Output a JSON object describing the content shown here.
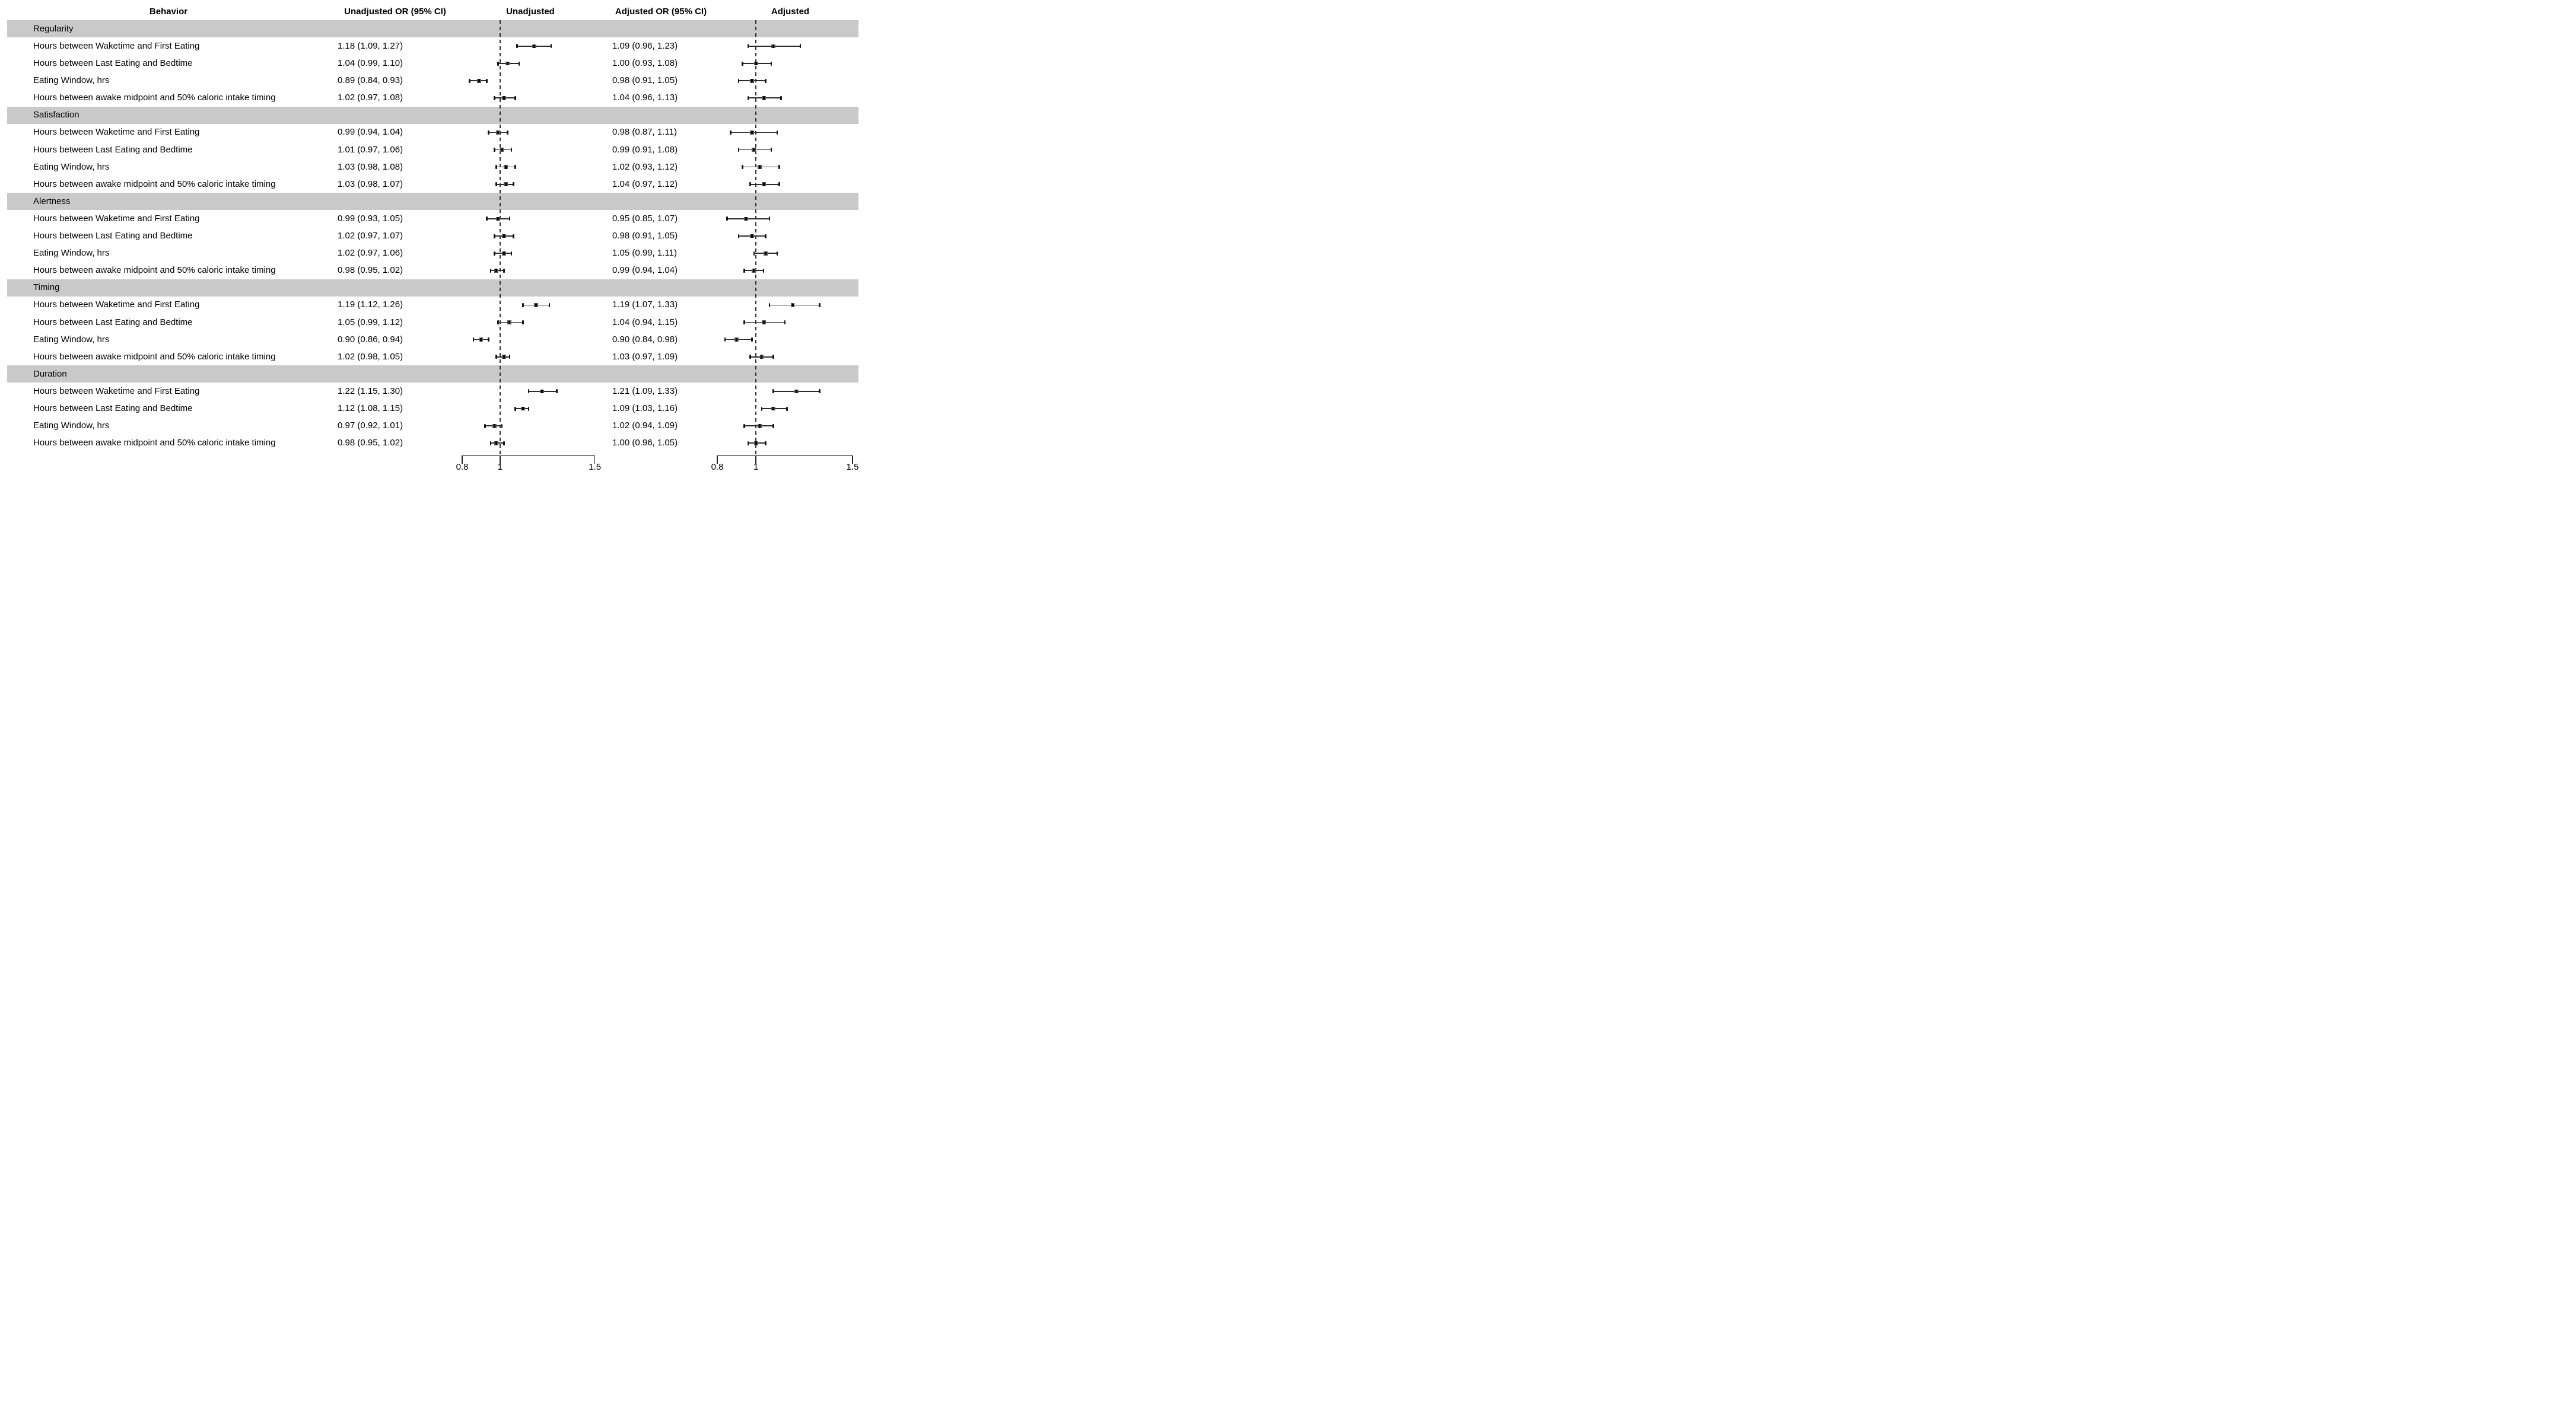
{
  "columns": {
    "behavior": "Behavior",
    "unadjusted_or": "Unadjusted OR (95% CI)",
    "unadjusted": "Unadjusted",
    "adjusted_or": "Adjusted OR (95% CI)",
    "adjusted": "Adjusted"
  },
  "colors": {
    "band": "#c9c9c9",
    "text": "#000000",
    "error_bar": "#2b2b2b",
    "cap": "#151515",
    "square_fill": "#5a5a5e",
    "point": "#000000",
    "reference_line": "#2e2e2e",
    "axis": "#222222"
  },
  "chart_data": {
    "type": "forest",
    "scale": "linear",
    "panels": [
      "Unadjusted",
      "Adjusted"
    ],
    "axis": {
      "range": [
        0.8,
        1.5
      ],
      "reference": 1,
      "ticks": [
        0.8,
        1,
        1.5
      ],
      "tick_labels": [
        "0.8",
        "1",
        "1.5"
      ]
    },
    "sections": [
      {
        "name": "Regularity",
        "rows": [
          {
            "label": "Hours between Waketime and First Eating",
            "unadjusted": {
              "text": "1.18 (1.09, 1.27)",
              "or": 1.18,
              "lo": 1.09,
              "hi": 1.27
            },
            "adjusted": {
              "text": "1.09 (0.96, 1.23)",
              "or": 1.09,
              "lo": 0.96,
              "hi": 1.23
            }
          },
          {
            "label": "Hours between Last Eating and Bedtime",
            "unadjusted": {
              "text": "1.04 (0.99, 1.10)",
              "or": 1.04,
              "lo": 0.99,
              "hi": 1.1
            },
            "adjusted": {
              "text": "1.00 (0.93, 1.08)",
              "or": 1.0,
              "lo": 0.93,
              "hi": 1.08
            }
          },
          {
            "label": "Eating Window, hrs",
            "unadjusted": {
              "text": "0.89 (0.84, 0.93)",
              "or": 0.89,
              "lo": 0.84,
              "hi": 0.93
            },
            "adjusted": {
              "text": "0.98 (0.91, 1.05)",
              "or": 0.98,
              "lo": 0.91,
              "hi": 1.05
            }
          },
          {
            "label": "Hours between awake midpoint and 50% caloric intake timing",
            "unadjusted": {
              "text": "1.02 (0.97, 1.08)",
              "or": 1.02,
              "lo": 0.97,
              "hi": 1.08
            },
            "adjusted": {
              "text": "1.04 (0.96, 1.13)",
              "or": 1.04,
              "lo": 0.96,
              "hi": 1.13
            }
          }
        ]
      },
      {
        "name": "Satisfaction",
        "rows": [
          {
            "label": "Hours between Waketime and First Eating",
            "unadjusted": {
              "text": "0.99 (0.94, 1.04)",
              "or": 0.99,
              "lo": 0.94,
              "hi": 1.04
            },
            "adjusted": {
              "text": "0.98 (0.87, 1.11)",
              "or": 0.98,
              "lo": 0.87,
              "hi": 1.11
            }
          },
          {
            "label": "Hours between Last Eating and Bedtime",
            "unadjusted": {
              "text": "1.01 (0.97, 1.06)",
              "or": 1.01,
              "lo": 0.97,
              "hi": 1.06
            },
            "adjusted": {
              "text": "0.99 (0.91, 1.08)",
              "or": 0.99,
              "lo": 0.91,
              "hi": 1.08
            }
          },
          {
            "label": "Eating Window, hrs",
            "unadjusted": {
              "text": "1.03 (0.98, 1.08)",
              "or": 1.03,
              "lo": 0.98,
              "hi": 1.08
            },
            "adjusted": {
              "text": "1.02 (0.93, 1.12)",
              "or": 1.02,
              "lo": 0.93,
              "hi": 1.12
            }
          },
          {
            "label": "Hours between awake midpoint and 50% caloric intake timing",
            "unadjusted": {
              "text": "1.03 (0.98, 1.07)",
              "or": 1.03,
              "lo": 0.98,
              "hi": 1.07
            },
            "adjusted": {
              "text": "1.04 (0.97, 1.12)",
              "or": 1.04,
              "lo": 0.97,
              "hi": 1.12
            }
          }
        ]
      },
      {
        "name": "Alertness",
        "rows": [
          {
            "label": "Hours between Waketime and First Eating",
            "unadjusted": {
              "text": "0.99 (0.93, 1.05)",
              "or": 0.99,
              "lo": 0.93,
              "hi": 1.05
            },
            "adjusted": {
              "text": "0.95 (0.85, 1.07)",
              "or": 0.95,
              "lo": 0.85,
              "hi": 1.07
            }
          },
          {
            "label": "Hours between Last Eating and Bedtime",
            "unadjusted": {
              "text": "1.02 (0.97, 1.07)",
              "or": 1.02,
              "lo": 0.97,
              "hi": 1.07
            },
            "adjusted": {
              "text": "0.98 (0.91, 1.05)",
              "or": 0.98,
              "lo": 0.91,
              "hi": 1.05
            }
          },
          {
            "label": "Eating Window, hrs",
            "unadjusted": {
              "text": "1.02 (0.97, 1.06)",
              "or": 1.02,
              "lo": 0.97,
              "hi": 1.06
            },
            "adjusted": {
              "text": "1.05 (0.99, 1.11)",
              "or": 1.05,
              "lo": 0.99,
              "hi": 1.11
            }
          },
          {
            "label": "Hours between awake midpoint and 50% caloric intake timing",
            "unadjusted": {
              "text": "0.98 (0.95, 1.02)",
              "or": 0.98,
              "lo": 0.95,
              "hi": 1.02
            },
            "adjusted": {
              "text": "0.99 (0.94, 1.04)",
              "or": 0.99,
              "lo": 0.94,
              "hi": 1.04
            }
          }
        ]
      },
      {
        "name": "Timing",
        "rows": [
          {
            "label": "Hours between Waketime and First Eating",
            "unadjusted": {
              "text": "1.19 (1.12, 1.26)",
              "or": 1.19,
              "lo": 1.12,
              "hi": 1.26
            },
            "adjusted": {
              "text": "1.19 (1.07, 1.33)",
              "or": 1.19,
              "lo": 1.07,
              "hi": 1.33
            }
          },
          {
            "label": "Hours between Last Eating and Bedtime",
            "unadjusted": {
              "text": "1.05 (0.99, 1.12)",
              "or": 1.05,
              "lo": 0.99,
              "hi": 1.12
            },
            "adjusted": {
              "text": "1.04 (0.94, 1.15)",
              "or": 1.04,
              "lo": 0.94,
              "hi": 1.15
            }
          },
          {
            "label": "Eating Window, hrs",
            "unadjusted": {
              "text": "0.90 (0.86, 0.94)",
              "or": 0.9,
              "lo": 0.86,
              "hi": 0.94
            },
            "adjusted": {
              "text": "0.90 (0.84, 0.98)",
              "or": 0.9,
              "lo": 0.84,
              "hi": 0.98
            }
          },
          {
            "label": "Hours between awake midpoint and 50% caloric intake timing",
            "unadjusted": {
              "text": "1.02 (0.98, 1.05)",
              "or": 1.02,
              "lo": 0.98,
              "hi": 1.05
            },
            "adjusted": {
              "text": "1.03 (0.97, 1.09)",
              "or": 1.03,
              "lo": 0.97,
              "hi": 1.09
            }
          }
        ]
      },
      {
        "name": "Duration",
        "rows": [
          {
            "label": "Hours between Waketime and First Eating",
            "unadjusted": {
              "text": "1.22 (1.15, 1.30)",
              "or": 1.22,
              "lo": 1.15,
              "hi": 1.3
            },
            "adjusted": {
              "text": "1.21 (1.09, 1.33)",
              "or": 1.21,
              "lo": 1.09,
              "hi": 1.33
            }
          },
          {
            "label": "Hours between Last Eating and Bedtime",
            "unadjusted": {
              "text": "1.12 (1.08, 1.15)",
              "or": 1.12,
              "lo": 1.08,
              "hi": 1.15
            },
            "adjusted": {
              "text": "1.09 (1.03, 1.16)",
              "or": 1.09,
              "lo": 1.03,
              "hi": 1.16
            }
          },
          {
            "label": "Eating Window, hrs",
            "unadjusted": {
              "text": "0.97 (0.92, 1.01)",
              "or": 0.97,
              "lo": 0.92,
              "hi": 1.01
            },
            "adjusted": {
              "text": "1.02 (0.94, 1.09)",
              "or": 1.02,
              "lo": 0.94,
              "hi": 1.09
            }
          },
          {
            "label": "Hours between awake midpoint and 50% caloric intake timing",
            "unadjusted": {
              "text": "0.98 (0.95, 1.02)",
              "or": 0.98,
              "lo": 0.95,
              "hi": 1.02
            },
            "adjusted": {
              "text": "1.00 (0.96, 1.05)",
              "or": 1.0,
              "lo": 0.96,
              "hi": 1.05
            }
          }
        ]
      }
    ]
  }
}
